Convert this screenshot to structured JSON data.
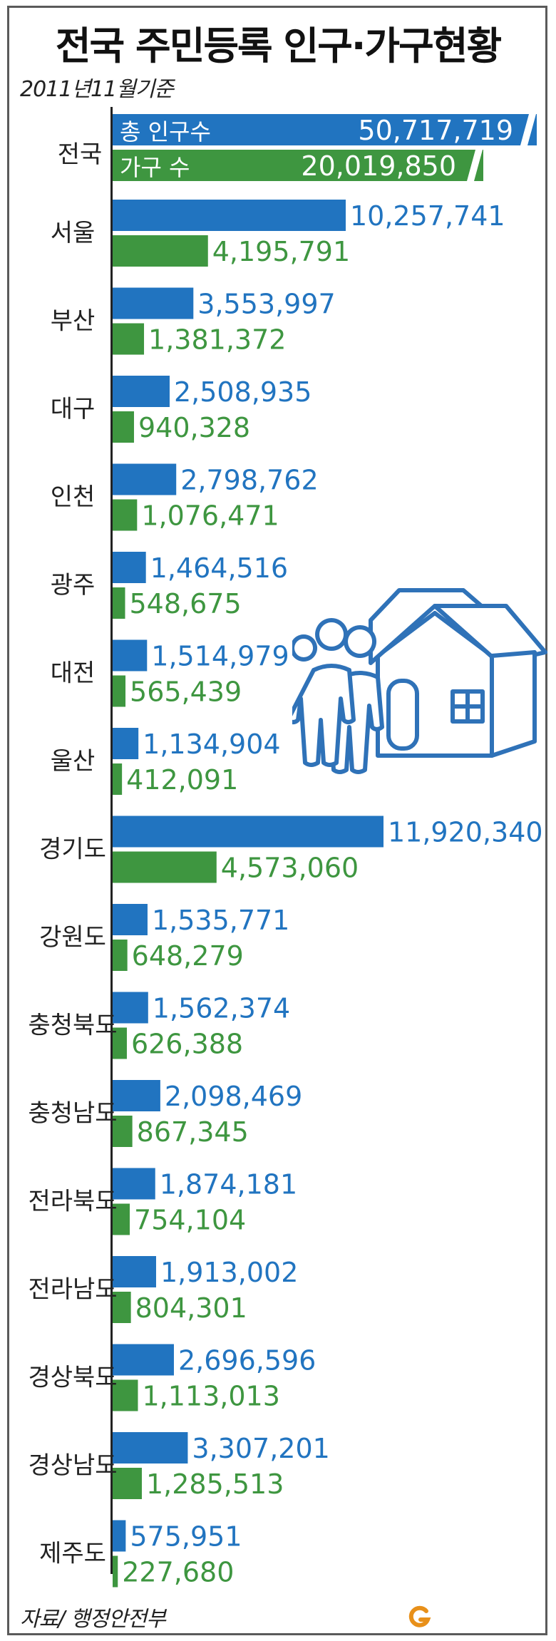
{
  "title": "전국 주민등록 인구·가구현황",
  "date_note": "2011년11월기준",
  "source": "자료/ 행정안전부",
  "colors": {
    "population": "#2174c0",
    "households": "#3e9640",
    "axis": "#222222",
    "illustration": "#2f72b8"
  },
  "icons": {
    "illustration": "people-and-house-icon",
    "logo": "g-logo-icon"
  },
  "chart_data": {
    "type": "bar",
    "orientation": "horizontal",
    "title": "전국 주민등록 인구·가구현황",
    "subtitle": "2011년11월기준",
    "national": {
      "label": "전국",
      "population_label": "총 인구수",
      "population": 50717719,
      "population_text": "50,717,719",
      "households_label": "가구 수",
      "households": 20019850,
      "households_text": "20,019,850",
      "truncated": true
    },
    "categories": [
      "서울",
      "부산",
      "대구",
      "인천",
      "광주",
      "대전",
      "울산",
      "경기도",
      "강원도",
      "충청북도",
      "충청남도",
      "전라북도",
      "전라남도",
      "경상북도",
      "경상남도",
      "제주도"
    ],
    "series": [
      {
        "name": "총 인구수",
        "values": [
          10257741,
          3553997,
          2508935,
          2798762,
          1464516,
          1514979,
          1134904,
          11920340,
          1535771,
          1562374,
          2098469,
          1874181,
          1913002,
          2696596,
          3307201,
          575951
        ],
        "labels": [
          "10,257,741",
          "3,553,997",
          "2,508,935",
          "2,798,762",
          "1,464,516",
          "1,514,979",
          "1,134,904",
          "11,920,340",
          "1,535,771",
          "1,562,374",
          "2,098,469",
          "1,874,181",
          "1,913,002",
          "2,696,596",
          "3,307,201",
          "575,951"
        ]
      },
      {
        "name": "가구 수",
        "values": [
          4195791,
          1381372,
          940328,
          1076471,
          548675,
          565439,
          412091,
          4573060,
          648279,
          626388,
          867345,
          754104,
          804301,
          1113013,
          1285513,
          227680
        ],
        "labels": [
          "4,195,791",
          "1,381,372",
          "940,328",
          "1,076,471",
          "548,675",
          "565,439",
          "412,091",
          "4,573,060",
          "648,279",
          "626,388",
          "867,345",
          "754,104",
          "804,301",
          "1,113,013",
          "1,285,513",
          "227,680"
        ]
      }
    ],
    "xlim": [
      0,
      11920340
    ],
    "grid": false
  }
}
